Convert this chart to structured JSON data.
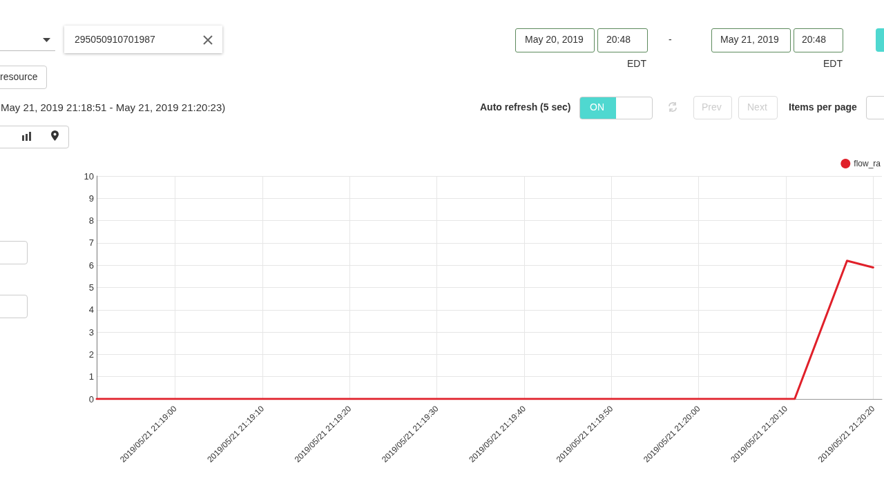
{
  "chart_data": {
    "type": "line",
    "subtitle": "May 21, 2019 21:18:51 - May 21, 2019 21:20:23)",
    "annotations": [
      "295050910701987",
      "resource",
      "May 20, 2019",
      "20:48",
      "-",
      "May 21, 2019",
      "20:48",
      "EDT",
      "EDT",
      "Auto refresh (5 sec)",
      "ON",
      "Prev",
      "Next",
      "Items per page"
    ],
    "series": [
      {
        "name": "flow_ra",
        "color": "#e0202a",
        "x": [
          "2019-05-21T21:18:51",
          "2019-05-21T21:20:11",
          "2019-05-21T21:20:17",
          "2019-05-21T21:20:20"
        ],
        "values": [
          0,
          0,
          6.2,
          5.9
        ]
      }
    ],
    "xlim": [
      "2019-05-21T21:18:51",
      "2019-05-21T21:20:21"
    ],
    "xticks": [
      {
        "value": "2019-05-21T21:19:00",
        "label": "2019/05/21 21:19:00"
      },
      {
        "value": "2019-05-21T21:19:10",
        "label": "2019/05/21 21:19:10"
      },
      {
        "value": "2019-05-21T21:19:20",
        "label": "2019/05/21 21:19:20"
      },
      {
        "value": "2019-05-21T21:19:30",
        "label": "2019/05/21 21:19:30"
      },
      {
        "value": "2019-05-21T21:19:40",
        "label": "2019/05/21 21:19:40"
      },
      {
        "value": "2019-05-21T21:19:50",
        "label": "2019/05/21 21:19:50"
      },
      {
        "value": "2019-05-21T21:20:00",
        "label": "2019/05/21 21:20:00"
      },
      {
        "value": "2019-05-21T21:20:10",
        "label": "2019/05/21 21:20:10"
      },
      {
        "value": "2019-05-21T21:20:20",
        "label": "2019/05/21 21:20:20"
      }
    ],
    "ylim": [
      0,
      10
    ],
    "yticks": [
      0,
      1,
      2,
      3,
      4,
      5,
      6,
      7,
      8,
      9,
      10
    ],
    "grid": true,
    "legend": "top right",
    "marker": "none",
    "line_style": "solid"
  }
}
